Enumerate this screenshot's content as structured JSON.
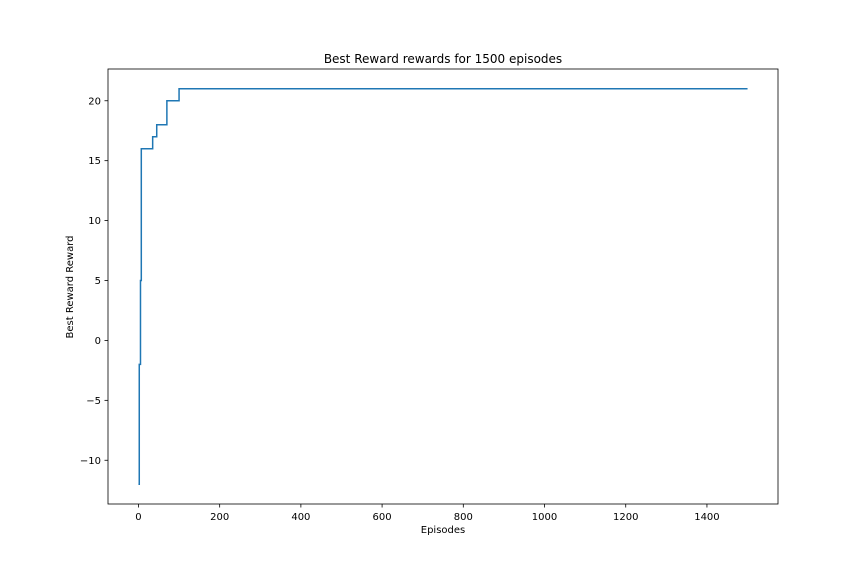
{
  "chart_data": {
    "type": "line",
    "title": "Best Reward rewards for 1500 episodes",
    "xlabel": "Episodes",
    "ylabel": "Best Reward Reward",
    "xlim": [
      -75,
      1575
    ],
    "ylim": [
      -13.65,
      22.65
    ],
    "xticks": [
      0,
      200,
      400,
      600,
      800,
      1000,
      1200,
      1400
    ],
    "yticks": [
      -10,
      -5,
      0,
      5,
      10,
      15,
      20
    ],
    "ytick_labels": [
      "−10",
      "−5",
      "0",
      "5",
      "10",
      "15",
      "20"
    ],
    "grid": false,
    "legend": "none",
    "series": [
      {
        "color": "#1f77b4",
        "step": true,
        "x": [
          0,
          2,
          5,
          7,
          10,
          12,
          35,
          45,
          55,
          70,
          100,
          1500
        ],
        "y": [
          -12,
          -2,
          5,
          16,
          16,
          16,
          17,
          18,
          18,
          20,
          21,
          21
        ]
      }
    ]
  }
}
